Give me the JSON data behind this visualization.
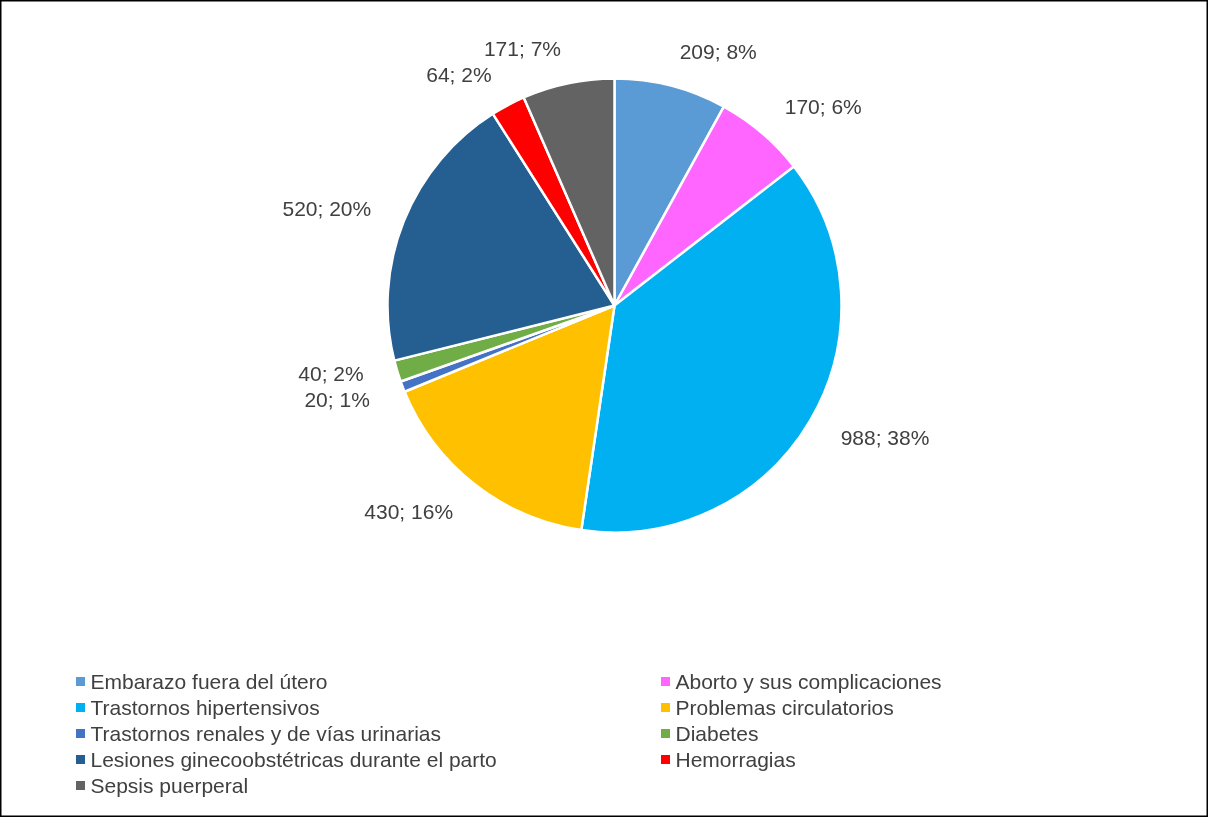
{
  "chart_data": {
    "type": "pie",
    "categories": [
      "Embarazo fuera del útero",
      "Aborto y sus complicaciones",
      "Trastornos hipertensivos",
      "Problemas circulatorios",
      "Trastornos renales y de vías urinarias",
      "Diabetes",
      "Lesiones ginecoobstétricas durante el parto",
      "Hemorragias",
      "Sepsis puerperal"
    ],
    "values": [
      209,
      170,
      988,
      430,
      20,
      40,
      520,
      64,
      171
    ],
    "colors": [
      "#5b9bd5",
      "#ff66ff",
      "#00b0f0",
      "#ffc000",
      "#4472c4",
      "#70ad47",
      "#255e91",
      "#ff0000",
      "#636363"
    ],
    "value_labels": [
      "209; 8%",
      "170; 6%",
      "988; 38%",
      "430; 16%",
      "20; 1%",
      "40; 2%",
      "520; 20%",
      "64; 2%",
      "171; 7%"
    ],
    "legend": "bottom"
  }
}
